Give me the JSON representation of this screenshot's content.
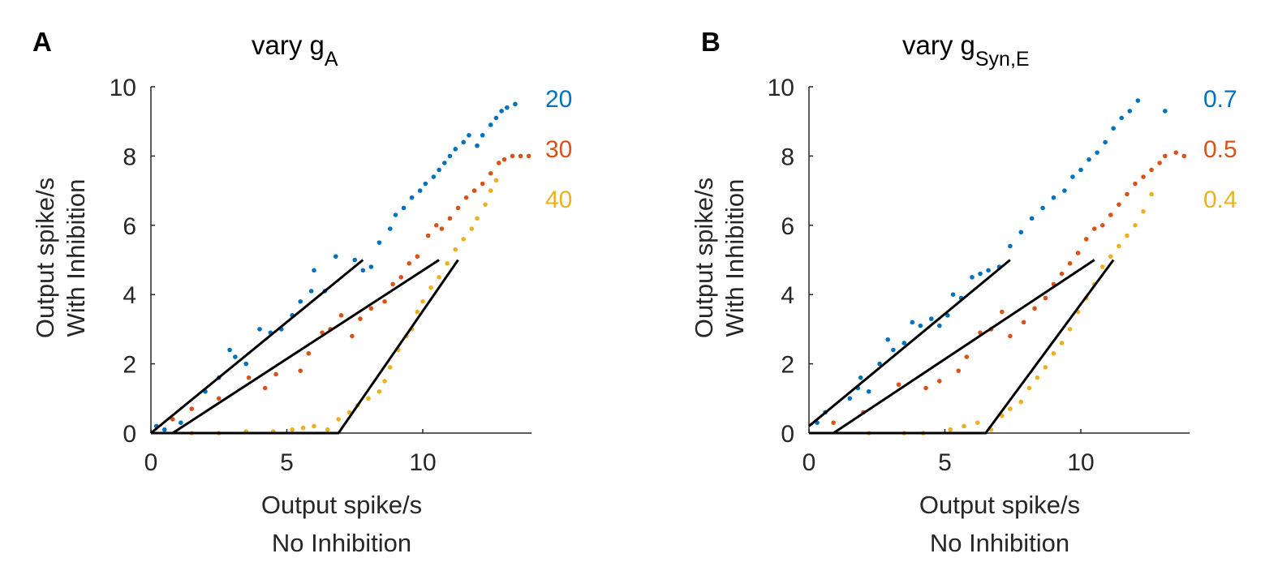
{
  "chart_data": [
    {
      "type": "scatter",
      "panel_label": "A",
      "title_main": "vary g",
      "title_sub": "A",
      "xlabel_line1": "Output spike/s",
      "xlabel_line2": "No Inhibition",
      "ylabel_line1": "Output spike/s",
      "ylabel_line2": "With Inhibition",
      "xlim": [
        0,
        14
      ],
      "ylim": [
        0,
        10
      ],
      "xticks": [
        0,
        5,
        10
      ],
      "yticks": [
        0,
        2,
        4,
        6,
        8,
        10
      ],
      "colors": {
        "blue": "#0072BD",
        "orange": "#D95319",
        "yellow": "#EDB120",
        "line": "#000000"
      },
      "series": [
        {
          "name": "20",
          "color": "#0072BD",
          "points": [
            [
              0.2,
              0.2
            ],
            [
              0.5,
              0.1
            ],
            [
              1.1,
              0.3
            ],
            [
              2,
              1.2
            ],
            [
              2.5,
              1.6
            ],
            [
              2.9,
              2.4
            ],
            [
              3.1,
              2.2
            ],
            [
              3.5,
              2.0
            ],
            [
              4.0,
              3.0
            ],
            [
              4.4,
              2.9
            ],
            [
              4.8,
              3.0
            ],
            [
              5.2,
              3.4
            ],
            [
              5.5,
              3.8
            ],
            [
              5.9,
              4.1
            ],
            [
              6.0,
              4.7
            ],
            [
              6.4,
              4.1
            ],
            [
              6.8,
              5.1
            ],
            [
              7.5,
              5.0
            ],
            [
              7.8,
              4.7
            ],
            [
              8.1,
              4.8
            ],
            [
              8.4,
              5.5
            ],
            [
              8.8,
              5.9
            ],
            [
              9.0,
              6.3
            ],
            [
              9.3,
              6.5
            ],
            [
              9.6,
              6.8
            ],
            [
              9.9,
              7.0
            ],
            [
              10.1,
              7.2
            ],
            [
              10.4,
              7.4
            ],
            [
              10.6,
              7.6
            ],
            [
              10.8,
              7.8
            ],
            [
              11.0,
              8.0
            ],
            [
              11.2,
              8.2
            ],
            [
              11.5,
              8.4
            ],
            [
              11.7,
              8.6
            ],
            [
              12.0,
              8.3
            ],
            [
              12.2,
              8.6
            ],
            [
              12.5,
              8.9
            ],
            [
              12.7,
              9.1
            ],
            [
              12.9,
              9.3
            ],
            [
              13.1,
              9.4
            ],
            [
              13.4,
              9.5
            ]
          ]
        },
        {
          "name": "30",
          "color": "#D95319",
          "points": [
            [
              0.8,
              0.4
            ],
            [
              1.5,
              0.7
            ],
            [
              2.5,
              1.0
            ],
            [
              3.6,
              1.6
            ],
            [
              4.2,
              1.3
            ],
            [
              4.6,
              1.7
            ],
            [
              5.5,
              1.8
            ],
            [
              5.8,
              2.3
            ],
            [
              6.3,
              2.9
            ],
            [
              6.6,
              3.0
            ],
            [
              7.0,
              3.4
            ],
            [
              7.4,
              2.8
            ],
            [
              7.7,
              3.3
            ],
            [
              8.1,
              3.6
            ],
            [
              8.6,
              3.8
            ],
            [
              8.9,
              4.3
            ],
            [
              9.2,
              4.5
            ],
            [
              9.5,
              4.9
            ],
            [
              9.8,
              5.1
            ],
            [
              10.2,
              5.7
            ],
            [
              10.5,
              6.0
            ],
            [
              10.7,
              5.9
            ],
            [
              11.0,
              6.2
            ],
            [
              11.3,
              6.5
            ],
            [
              11.6,
              6.8
            ],
            [
              11.9,
              7.0
            ],
            [
              12.2,
              7.2
            ],
            [
              12.5,
              7.5
            ],
            [
              12.8,
              7.8
            ],
            [
              13.0,
              7.9
            ],
            [
              13.3,
              8.0
            ],
            [
              13.6,
              8.0
            ],
            [
              13.9,
              8.0
            ]
          ]
        },
        {
          "name": "40",
          "color": "#EDB120",
          "points": [
            [
              1.5,
              0.0
            ],
            [
              2.5,
              0.0
            ],
            [
              3.5,
              0.05
            ],
            [
              4.5,
              0.05
            ],
            [
              5.2,
              0.1
            ],
            [
              5.6,
              0.15
            ],
            [
              6.0,
              0.2
            ],
            [
              6.5,
              0.1
            ],
            [
              6.9,
              0.4
            ],
            [
              7.3,
              0.6
            ],
            [
              7.6,
              0.8
            ],
            [
              8.0,
              1.0
            ],
            [
              8.4,
              1.2
            ],
            [
              8.6,
              1.5
            ],
            [
              8.8,
              1.9
            ],
            [
              9.1,
              2.4
            ],
            [
              9.4,
              2.8
            ],
            [
              9.6,
              3.0
            ],
            [
              9.8,
              3.5
            ],
            [
              10.0,
              3.8
            ],
            [
              10.3,
              4.2
            ],
            [
              10.6,
              4.5
            ],
            [
              10.9,
              4.9
            ],
            [
              11.2,
              5.3
            ],
            [
              11.5,
              5.6
            ],
            [
              11.8,
              5.9
            ],
            [
              12.0,
              6.2
            ],
            [
              12.3,
              6.6
            ],
            [
              12.5,
              7.0
            ],
            [
              12.7,
              7.3
            ]
          ]
        }
      ],
      "fit_lines": [
        {
          "points": [
            [
              0,
              0
            ],
            [
              7.8,
              5.0
            ]
          ]
        },
        {
          "points": [
            [
              0.8,
              0
            ],
            [
              10.6,
              5.0
            ]
          ]
        },
        {
          "points": [
            [
              0,
              0
            ],
            [
              6.9,
              0
            ],
            [
              11.3,
              5.0
            ]
          ]
        }
      ],
      "legend_entries": [
        {
          "text": "20",
          "color": "#0072BD"
        },
        {
          "text": "30",
          "color": "#D95319"
        },
        {
          "text": "40",
          "color": "#EDB120"
        }
      ]
    },
    {
      "type": "scatter",
      "panel_label": "B",
      "title_main": "vary g",
      "title_sub": "Syn,E",
      "xlabel_line1": "Output spike/s",
      "xlabel_line2": "No Inhibition",
      "ylabel_line1": "Output spike/s",
      "ylabel_line2": "With Inhibition",
      "xlim": [
        0,
        14
      ],
      "ylim": [
        0,
        10
      ],
      "xticks": [
        0,
        5,
        10
      ],
      "yticks": [
        0,
        2,
        4,
        6,
        8,
        10
      ],
      "colors": {
        "blue": "#0072BD",
        "orange": "#D95319",
        "yellow": "#EDB120",
        "line": "#000000"
      },
      "series": [
        {
          "name": "0.7",
          "color": "#0072BD",
          "points": [
            [
              0.3,
              0.3
            ],
            [
              0.6,
              0.6
            ],
            [
              1.5,
              1.0
            ],
            [
              1.8,
              1.3
            ],
            [
              1.9,
              1.6
            ],
            [
              2.2,
              1.2
            ],
            [
              2.6,
              2.0
            ],
            [
              2.9,
              2.7
            ],
            [
              3.1,
              2.4
            ],
            [
              3.5,
              2.6
            ],
            [
              3.8,
              3.2
            ],
            [
              4.1,
              3.1
            ],
            [
              4.5,
              3.3
            ],
            [
              4.8,
              3.1
            ],
            [
              5.1,
              3.4
            ],
            [
              5.3,
              4.0
            ],
            [
              5.6,
              3.9
            ],
            [
              6.0,
              4.5
            ],
            [
              6.3,
              4.6
            ],
            [
              6.6,
              4.7
            ],
            [
              7.0,
              4.8
            ],
            [
              7.4,
              5.4
            ],
            [
              7.8,
              5.8
            ],
            [
              8.2,
              6.2
            ],
            [
              8.6,
              6.5
            ],
            [
              9.0,
              6.8
            ],
            [
              9.4,
              7.0
            ],
            [
              9.7,
              7.4
            ],
            [
              10.0,
              7.6
            ],
            [
              10.3,
              7.9
            ],
            [
              10.6,
              8.1
            ],
            [
              10.9,
              8.4
            ],
            [
              11.2,
              8.8
            ],
            [
              11.5,
              9.1
            ],
            [
              11.8,
              9.3
            ],
            [
              12.1,
              9.6
            ],
            [
              13.1,
              9.3
            ]
          ]
        },
        {
          "name": "0.5",
          "color": "#D95319",
          "points": [
            [
              0.9,
              0.3
            ],
            [
              2.0,
              0.6
            ],
            [
              3.3,
              1.4
            ],
            [
              4.3,
              1.3
            ],
            [
              4.8,
              1.5
            ],
            [
              5.5,
              1.8
            ],
            [
              5.8,
              2.2
            ],
            [
              6.3,
              2.9
            ],
            [
              6.7,
              3.0
            ],
            [
              7.1,
              3.5
            ],
            [
              7.4,
              2.8
            ],
            [
              7.9,
              3.2
            ],
            [
              8.3,
              3.6
            ],
            [
              8.7,
              3.9
            ],
            [
              9.0,
              4.3
            ],
            [
              9.3,
              4.6
            ],
            [
              9.6,
              4.9
            ],
            [
              9.9,
              5.2
            ],
            [
              10.2,
              5.6
            ],
            [
              10.5,
              5.9
            ],
            [
              10.8,
              6.0
            ],
            [
              11.1,
              6.3
            ],
            [
              11.4,
              6.6
            ],
            [
              11.7,
              6.9
            ],
            [
              12.0,
              7.2
            ],
            [
              12.3,
              7.4
            ],
            [
              12.6,
              7.6
            ],
            [
              12.9,
              7.8
            ],
            [
              13.1,
              8.0
            ],
            [
              13.5,
              8.1
            ],
            [
              13.8,
              8.0
            ]
          ]
        },
        {
          "name": "0.4",
          "color": "#EDB120",
          "points": [
            [
              2.2,
              0.0
            ],
            [
              3.5,
              0.0
            ],
            [
              4.2,
              0.0
            ],
            [
              5.2,
              0.1
            ],
            [
              5.7,
              0.2
            ],
            [
              6.2,
              0.3
            ],
            [
              6.7,
              0.1
            ],
            [
              7.1,
              0.5
            ],
            [
              7.4,
              0.7
            ],
            [
              7.8,
              0.9
            ],
            [
              8.1,
              1.3
            ],
            [
              8.4,
              1.6
            ],
            [
              8.7,
              1.9
            ],
            [
              9.0,
              2.3
            ],
            [
              9.3,
              2.6
            ],
            [
              9.6,
              3.0
            ],
            [
              9.9,
              3.5
            ],
            [
              10.2,
              3.9
            ],
            [
              10.5,
              4.3
            ],
            [
              10.8,
              4.8
            ],
            [
              11.1,
              5.1
            ],
            [
              11.4,
              5.4
            ],
            [
              11.7,
              5.7
            ],
            [
              12.0,
              6.0
            ],
            [
              12.3,
              6.4
            ],
            [
              12.6,
              6.9
            ]
          ]
        }
      ],
      "fit_lines": [
        {
          "points": [
            [
              0,
              0.2
            ],
            [
              7.4,
              5.0
            ]
          ]
        },
        {
          "points": [
            [
              0.9,
              0
            ],
            [
              10.5,
              5.0
            ]
          ]
        },
        {
          "points": [
            [
              0,
              0
            ],
            [
              6.5,
              0
            ],
            [
              11.2,
              5.0
            ]
          ]
        }
      ],
      "legend_entries": [
        {
          "text": "0.7",
          "color": "#0072BD"
        },
        {
          "text": "0.5",
          "color": "#D95319"
        },
        {
          "text": "0.4",
          "color": "#EDB120"
        }
      ]
    }
  ]
}
